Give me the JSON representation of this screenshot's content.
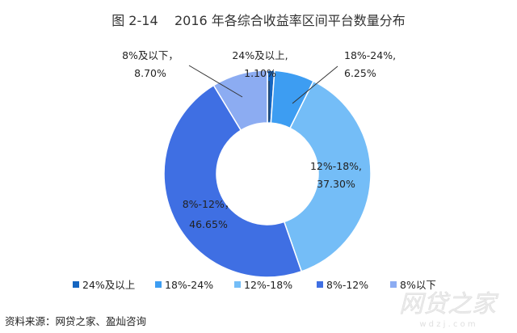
{
  "chart_data": {
    "type": "pie",
    "donut": true,
    "title": "图 2-14    2016 年各综合收益率区间平台数量分布",
    "slices": [
      {
        "name": "24%及以上",
        "value": 1.1,
        "label_name": "24%及以上,",
        "label_value": "1.10%",
        "color": "#1565c0"
      },
      {
        "name": "18%-24%",
        "value": 6.25,
        "label_name": "18%-24%,",
        "label_value": "6.25%",
        "color": "#3d9df2"
      },
      {
        "name": "12%-18%",
        "value": 37.3,
        "label_name": "12%-18%,",
        "label_value": "37.30%",
        "color": "#74bdf7"
      },
      {
        "name": "8%-12%",
        "value": 46.65,
        "label_name": "8%-12%，",
        "label_value": "46.65%",
        "color": "#3f6fe3"
      },
      {
        "name": "8%以下",
        "value": 8.7,
        "label_name": "8%及以下，",
        "label_value": "8.70%",
        "color": "#8cacf2"
      }
    ],
    "legend": {
      "position": "bottom",
      "items": [
        "24%及以上",
        "18%-24%",
        "12%-18%",
        "8%-12%",
        "8%以下"
      ]
    }
  },
  "source": "资料来源：网贷之家、盈灿咨询",
  "watermark": {
    "text": "网贷之家",
    "subtext": "w d z j . c o m"
  }
}
